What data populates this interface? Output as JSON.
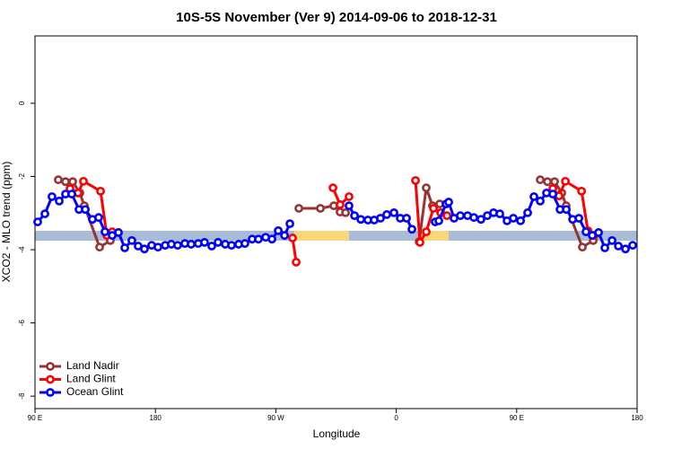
{
  "chart_data": {
    "type": "line",
    "title": "10S-5S November (Ver 9)   2014-09-06 to 2018-12-31",
    "xlabel": "Longitude",
    "ylabel": "XCO2 - MLO trend (ppm)",
    "xlim": [
      90,
      540
    ],
    "ylim": [
      -8.34,
      1.84
    ],
    "xticks": [
      {
        "value": 90,
        "label": "90 E"
      },
      180,
      {
        "value": 270,
        "label": "90 W"
      },
      {
        "value": 360,
        "label": "0"
      },
      {
        "value": 450,
        "label": "90 E"
      },
      {
        "value": 540,
        "label": "180"
      }
    ],
    "yticks": [
      -8,
      -6,
      -4,
      -2,
      0
    ],
    "legend": "bottom-left",
    "series": [
      {
        "name": "Land Nadir",
        "color": "#993333",
        "x": [
          107.4,
          112.8,
          118.2,
          123.5,
          126.9,
          138.3,
          146.3,
          null,
          287.2,
          303.3,
          313.3,
          318.0,
          322.1,
          null,
          377.1,
          382.4,
          387.1,
          392.5,
          null,
          467.6,
          473.0,
          478.3,
          483.7,
          487.0,
          499.1,
          507.2
        ],
        "values": [
          -2.09,
          -2.14,
          -2.14,
          -2.45,
          -2.8,
          -3.93,
          -3.75,
          null,
          -2.87,
          -2.87,
          -2.8,
          -2.97,
          -2.99,
          null,
          -3.78,
          -2.31,
          -2.8,
          -2.75,
          null,
          -2.09,
          -2.14,
          -2.14,
          -2.45,
          -2.8,
          -3.93,
          -3.75
        ]
      },
      {
        "name": "Land Glint",
        "color": "#ff0000",
        "x": [
          116.2,
          122.2,
          126.2,
          139.0,
          143.7,
          147.7,
          null,
          282.5,
          285.2,
          null,
          312.7,
          318.0,
          324.7,
          null,
          374.4,
          377.7,
          382.4,
          387.8,
          393.2,
          397.9,
          null,
          477.0,
          481.7,
          486.4,
          498.5,
          503.2,
          507.9
        ],
        "values": [
          -2.33,
          -2.45,
          -2.13,
          -2.4,
          -3.61,
          -3.51,
          null,
          -3.68,
          -4.34,
          null,
          -2.31,
          -2.77,
          -2.55,
          null,
          -2.11,
          -3.8,
          -3.51,
          -2.87,
          -2.99,
          -3.07,
          null,
          -2.33,
          -2.53,
          -2.13,
          -2.4,
          -3.48,
          -3.61
        ]
      },
      {
        "name": "Ocean Glint",
        "color": "#0000ff",
        "x": [
          92.0,
          97.4,
          102.7,
          108.1,
          112.8,
          117.5,
          122.9,
          127.6,
          132.9,
          137.6,
          142.3,
          147.7,
          152.4,
          157.1,
          162.4,
          167.1,
          171.8,
          177.2,
          181.9,
          187.3,
          191.9,
          196.6,
          202.0,
          206.7,
          212.0,
          216.7,
          222.1,
          226.8,
          232.2,
          236.9,
          242.2,
          246.9,
          252.3,
          257.0,
          262.4,
          267.1,
          271.8,
          276.5,
          280.5,
          null,
          324.7,
          328.8,
          333.5,
          338.8,
          343.5,
          348.2,
          352.9,
          358.3,
          363.0,
          367.7,
          371.7,
          null,
          389.1,
          391.8,
          397.2,
          399.2,
          403.2,
          407.9,
          413.3,
          418.0,
          423.3,
          428.0,
          432.7,
          437.4,
          442.8,
          447.5,
          452.9,
          458.2,
          462.9,
          467.6,
          472.3,
          477.0,
          482.4,
          487.1,
          491.8,
          496.5,
          501.8,
          506.5,
          511.2,
          515.9,
          521.3,
          526.0,
          531.3,
          536.7
        ],
        "values": [
          -3.24,
          -3.02,
          -2.55,
          -2.67,
          -2.48,
          -2.48,
          -2.9,
          -2.9,
          -3.17,
          -3.12,
          -3.51,
          -3.61,
          -3.53,
          -3.95,
          -3.75,
          -3.9,
          -3.98,
          -3.88,
          -3.93,
          -3.88,
          -3.85,
          -3.88,
          -3.83,
          -3.85,
          -3.83,
          -3.8,
          -3.9,
          -3.8,
          -3.85,
          -3.88,
          -3.85,
          -3.83,
          -3.71,
          -3.71,
          -3.66,
          -3.71,
          -3.48,
          -3.61,
          -3.29,
          null,
          -2.8,
          -3.07,
          -3.17,
          -3.19,
          -3.19,
          -3.14,
          -3.04,
          -2.99,
          -3.14,
          -3.14,
          -3.44,
          null,
          -3.24,
          -3.21,
          -2.75,
          -2.7,
          -3.14,
          -3.07,
          -3.07,
          -3.12,
          -3.17,
          -3.07,
          -2.99,
          -3.02,
          -3.21,
          -3.14,
          -3.21,
          -2.99,
          -2.55,
          -2.67,
          -2.45,
          -2.48,
          -2.9,
          -2.9,
          -3.17,
          -3.14,
          -3.51,
          -3.61,
          -3.53,
          -3.95,
          -3.75,
          -3.9,
          -3.98,
          -3.88
        ]
      }
    ]
  }
}
